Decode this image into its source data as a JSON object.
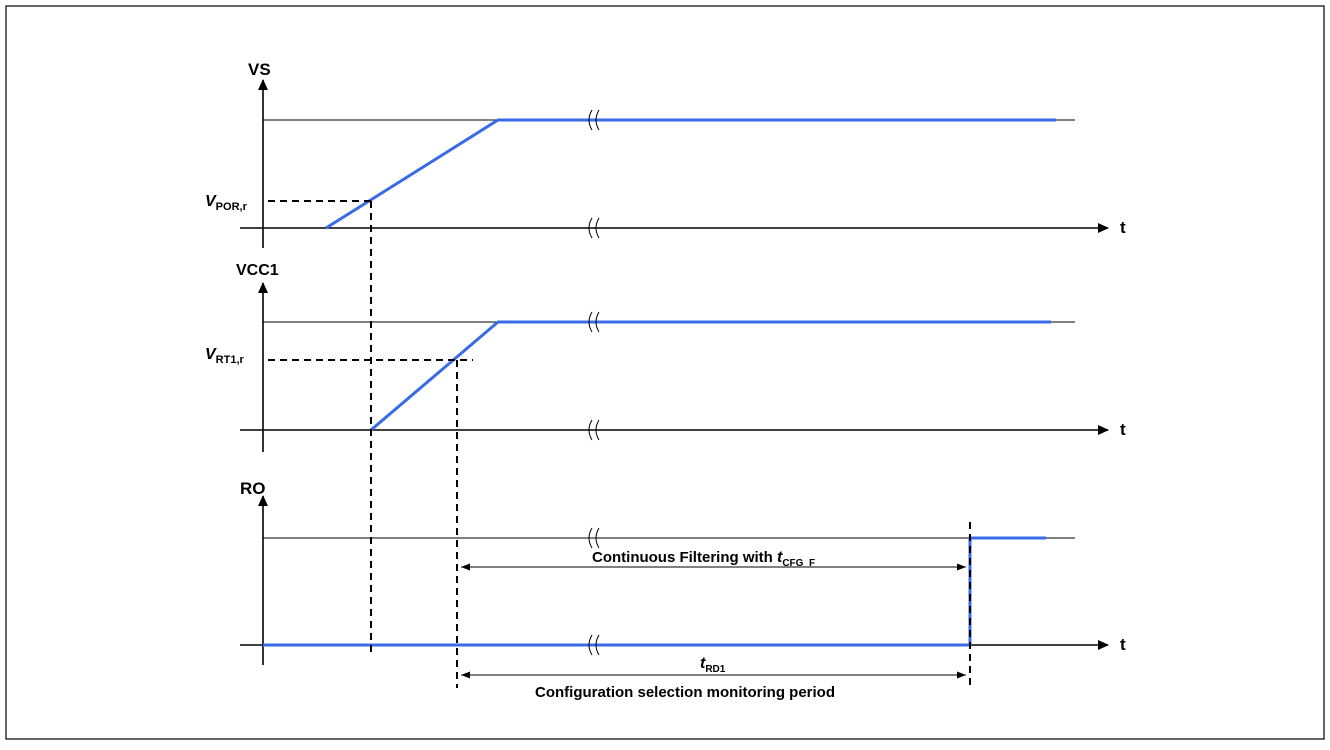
{
  "signals": {
    "vs": {
      "label": "VS",
      "axis_label": "t"
    },
    "vcc1": {
      "label": "VCC1",
      "axis_label": "t"
    },
    "ro": {
      "label": "RO",
      "axis_label": "t"
    }
  },
  "thresholds": {
    "vpor": {
      "main": "V",
      "sub": "POR,r"
    },
    "vrt1": {
      "main": "V",
      "sub": "RT1,r"
    }
  },
  "annotations": {
    "filtering": {
      "text": "Continuous Filtering with ",
      "t_main": "t",
      "t_sub": "CFG_F"
    },
    "trd1": {
      "main": "t",
      "sub": "RD1"
    },
    "monitoring": {
      "text": "Configuration selection monitoring period"
    }
  },
  "colors": {
    "signal": "#3a6be6",
    "axis": "#000000",
    "background": "#ffffff"
  }
}
